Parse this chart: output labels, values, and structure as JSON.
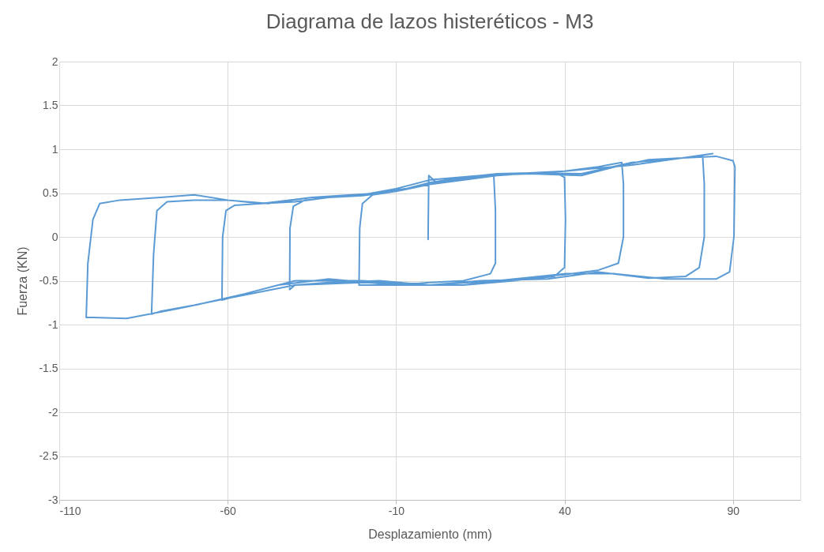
{
  "chart_data": {
    "type": "line",
    "title": "Diagrama de lazos histeréticos - M3",
    "xlabel": "Desplazamiento  (mm)",
    "ylabel": "Fuerza  (KN)",
    "xlim": [
      -110,
      110
    ],
    "xticks": [
      -110,
      -60,
      -10,
      40,
      90
    ],
    "ylim": [
      -3,
      2
    ],
    "yticks": [
      -3,
      -2.5,
      -2,
      -1.5,
      -1,
      -0.5,
      0,
      0.5,
      1,
      1.5,
      2
    ],
    "grid": true,
    "marker": "none",
    "line_style": "solid",
    "x": [
      -0.5,
      -0.3,
      2,
      8,
      14,
      19,
      19.5,
      19.5,
      18,
      10,
      0,
      -10,
      -19,
      -21,
      -20.8,
      -20,
      -17,
      -10,
      0,
      10,
      20,
      30,
      38,
      40,
      40.3,
      40,
      37,
      25,
      10,
      0,
      -15,
      -30,
      -40,
      -41.6,
      -41.5,
      -40.5,
      -37,
      -30,
      -20,
      -10,
      0,
      10,
      25,
      40,
      50,
      57,
      57.5,
      57.5,
      56,
      50,
      40,
      25,
      10,
      -10,
      -30,
      -45,
      -55,
      -61.7,
      -61.5,
      -60.5,
      -58,
      -50,
      -40,
      -30,
      -15,
      0,
      15,
      30,
      45,
      55,
      65,
      75,
      81,
      81.5,
      81.5,
      80,
      76,
      65,
      50,
      35,
      15,
      0,
      -20,
      -40,
      -55,
      -70,
      -80,
      -82.6,
      -82,
      -81,
      -78,
      -70,
      -60,
      -50,
      -35,
      -15,
      0,
      20,
      40,
      60,
      75,
      85,
      90,
      90.6,
      90.3,
      89,
      85,
      70,
      55,
      40,
      20,
      0,
      -20,
      -40,
      -60,
      -75,
      -90,
      -100,
      -102,
      -101.5,
      -100,
      -98,
      -92,
      -80,
      -70,
      -60,
      -48,
      -35,
      -20,
      -10,
      0,
      15,
      30,
      45,
      60,
      75,
      84
    ],
    "series": [
      {
        "color": "#5b9bd5",
        "values": [
          -0.03,
          0.7,
          0.62,
          0.66,
          0.68,
          0.7,
          0.3,
          -0.3,
          -0.42,
          -0.5,
          -0.52,
          -0.55,
          -0.55,
          -0.55,
          0.1,
          0.38,
          0.48,
          0.52,
          0.6,
          0.68,
          0.72,
          0.73,
          0.72,
          0.68,
          0.2,
          -0.35,
          -0.45,
          -0.5,
          -0.55,
          -0.55,
          -0.5,
          -0.52,
          -0.55,
          -0.6,
          0.1,
          0.35,
          0.42,
          0.45,
          0.47,
          0.52,
          0.62,
          0.68,
          0.72,
          0.75,
          0.8,
          0.85,
          0.6,
          0,
          -0.3,
          -0.38,
          -0.43,
          -0.48,
          -0.55,
          -0.55,
          -0.48,
          -0.55,
          -0.65,
          -0.72,
          0,
          0.3,
          0.36,
          0.38,
          0.4,
          0.45,
          0.5,
          0.6,
          0.7,
          0.72,
          0.7,
          0.8,
          0.88,
          0.9,
          0.93,
          0.6,
          0,
          -0.35,
          -0.45,
          -0.47,
          -0.4,
          -0.48,
          -0.5,
          -0.55,
          -0.5,
          -0.5,
          -0.65,
          -0.78,
          -0.85,
          -0.88,
          -0.2,
          0.3,
          0.4,
          0.42,
          0.42,
          0.38,
          0.45,
          0.5,
          0.6,
          0.7,
          0.75,
          0.82,
          0.9,
          0.92,
          0.87,
          0.8,
          0,
          -0.4,
          -0.48,
          -0.48,
          -0.42,
          -0.42,
          -0.5,
          -0.55,
          -0.52,
          -0.55,
          -0.7,
          -0.82,
          -0.93,
          -0.92,
          -0.92,
          -0.3,
          0.2,
          0.38,
          0.42,
          0.45,
          0.48,
          0.42,
          0.38,
          0.45,
          0.48,
          0.55,
          0.65,
          0.7,
          0.73,
          0.72,
          0.85,
          0.9,
          0.95
        ]
      }
    ]
  }
}
